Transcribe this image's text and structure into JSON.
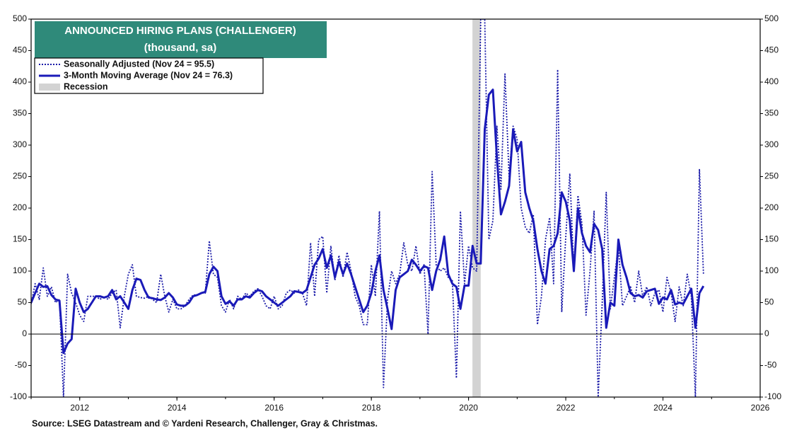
{
  "chart_data": {
    "type": "line",
    "title": "ANNOUNCED HIRING PLANS (CHALLENGER)",
    "subtitle": "(thousand, sa)",
    "source": "Source: LSEG Datastream and © Yardeni Research, Challenger, Gray & Christmas.",
    "xlim": [
      2011,
      2026
    ],
    "xticks": [
      2012,
      2014,
      2016,
      2018,
      2020,
      2022,
      2024,
      2026
    ],
    "ylim": [
      -100,
      500
    ],
    "yticks": [
      -100,
      -50,
      0,
      50,
      100,
      150,
      200,
      250,
      300,
      350,
      400,
      450,
      500
    ],
    "shaded": {
      "name": "Recession",
      "color": "#d3d3d3",
      "x": [
        2020.08,
        2020.25
      ]
    },
    "x": [
      2011,
      2011.083,
      2011.167,
      2011.25,
      2011.333,
      2011.417,
      2011.5,
      2011.583,
      2011.667,
      2011.75,
      2011.833,
      2011.917,
      2012,
      2012.083,
      2012.167,
      2012.25,
      2012.333,
      2012.417,
      2012.5,
      2012.583,
      2012.667,
      2012.75,
      2012.833,
      2012.917,
      2013,
      2013.083,
      2013.167,
      2013.25,
      2013.333,
      2013.417,
      2013.5,
      2013.583,
      2013.667,
      2013.75,
      2013.833,
      2013.917,
      2014,
      2014.083,
      2014.167,
      2014.25,
      2014.333,
      2014.417,
      2014.5,
      2014.583,
      2014.667,
      2014.75,
      2014.833,
      2014.917,
      2015,
      2015.083,
      2015.167,
      2015.25,
      2015.333,
      2015.417,
      2015.5,
      2015.583,
      2015.667,
      2015.75,
      2015.833,
      2015.917,
      2016,
      2016.083,
      2016.167,
      2016.25,
      2016.333,
      2016.417,
      2016.5,
      2016.583,
      2016.667,
      2016.75,
      2016.833,
      2016.917,
      2017,
      2017.083,
      2017.167,
      2017.25,
      2017.333,
      2017.417,
      2017.5,
      2017.583,
      2017.667,
      2017.75,
      2017.833,
      2017.917,
      2018,
      2018.083,
      2018.167,
      2018.25,
      2018.333,
      2018.417,
      2018.5,
      2018.583,
      2018.667,
      2018.75,
      2018.833,
      2018.917,
      2019,
      2019.083,
      2019.167,
      2019.25,
      2019.333,
      2019.417,
      2019.5,
      2019.583,
      2019.667,
      2019.75,
      2019.833,
      2019.917,
      2020,
      2020.083,
      2020.167,
      2020.25,
      2020.333,
      2020.417,
      2020.5,
      2020.583,
      2020.667,
      2020.75,
      2020.833,
      2020.917,
      2021,
      2021.083,
      2021.167,
      2021.25,
      2021.333,
      2021.417,
      2021.5,
      2021.583,
      2021.667,
      2021.75,
      2021.833,
      2021.917,
      2022,
      2022.083,
      2022.167,
      2022.25,
      2022.333,
      2022.417,
      2022.5,
      2022.583,
      2022.667,
      2022.75,
      2022.833,
      2022.917,
      2023,
      2023.083,
      2023.167,
      2023.25,
      2023.333,
      2023.417,
      2023.5,
      2023.583,
      2023.667,
      2023.75,
      2023.833,
      2023.917,
      2024,
      2024.083,
      2024.167,
      2024.25,
      2024.333,
      2024.417,
      2024.5,
      2024.583,
      2024.667,
      2024.75,
      2024.833
    ],
    "series": [
      {
        "name": "Seasonally Adjusted (Nov 24 = 95.5)",
        "color": "#1a1aa8",
        "style": "dotted",
        "values": [
          48,
          80,
          55,
          105,
          60,
          75,
          50,
          55,
          -100,
          95,
          65,
          50,
          30,
          20,
          60,
          60,
          60,
          55,
          60,
          55,
          65,
          70,
          10,
          60,
          95,
          110,
          60,
          58,
          57,
          60,
          55,
          50,
          95,
          60,
          35,
          55,
          40,
          40,
          45,
          55,
          62,
          62,
          65,
          65,
          148,
          95,
          90,
          45,
          35,
          55,
          40,
          60,
          55,
          65,
          60,
          68,
          72,
          60,
          45,
          40,
          60,
          40,
          45,
          65,
          70,
          65,
          70,
          65,
          45,
          145,
          60,
          150,
          155,
          65,
          140,
          85,
          125,
          90,
          130,
          100,
          60,
          45,
          15,
          15,
          110,
          60,
          195,
          -85,
          55,
          100,
          80,
          95,
          145,
          110,
          100,
          140,
          95,
          110,
          0,
          258,
          110,
          100,
          105,
          90,
          85,
          -70,
          195,
          80,
          140,
          105,
          100,
          500,
          500,
          150,
          180,
          330,
          230,
          413,
          250,
          330,
          310,
          200,
          170,
          160,
          190,
          15,
          60,
          150,
          185,
          80,
          420,
          35,
          155,
          255,
          100,
          220,
          175,
          30,
          100,
          195,
          -100,
          50,
          225,
          40,
          90,
          140,
          45,
          60,
          75,
          50,
          100,
          60,
          75,
          45,
          65,
          70,
          35,
          90,
          65,
          20,
          75,
          45,
          95,
          60,
          -100,
          262,
          95.5
        ]
      },
      {
        "name": "3-Month Moving Average (Nov 24 = 76.3)",
        "color": "#1a1ab8",
        "style": "solid",
        "values": [
          50,
          65,
          80,
          75,
          76,
          62,
          55,
          53,
          -30,
          -15,
          -8,
          72,
          50,
          35,
          40,
          50,
          60,
          60,
          58,
          60,
          70,
          55,
          60,
          50,
          40,
          70,
          88,
          86,
          70,
          58,
          57,
          55,
          54,
          58,
          65,
          58,
          47,
          45,
          45,
          50,
          60,
          62,
          65,
          67,
          95,
          107,
          100,
          60,
          48,
          52,
          45,
          55,
          55,
          60,
          58,
          65,
          70,
          68,
          60,
          55,
          50,
          45,
          50,
          55,
          60,
          68,
          67,
          65,
          70,
          90,
          110,
          120,
          135,
          105,
          125,
          90,
          115,
          95,
          112,
          95,
          75,
          55,
          35,
          45,
          65,
          100,
          125,
          70,
          40,
          8,
          70,
          90,
          95,
          100,
          118,
          110,
          100,
          108,
          105,
          70,
          100,
          118,
          155,
          95,
          80,
          75,
          40,
          77,
          77,
          140,
          112,
          112,
          325,
          380,
          388,
          280,
          190,
          210,
          235,
          325,
          290,
          305,
          225,
          200,
          180,
          135,
          100,
          80,
          135,
          140,
          160,
          225,
          210,
          180,
          100,
          200,
          160,
          140,
          130,
          175,
          165,
          135,
          10,
          50,
          45,
          150,
          110,
          90,
          65,
          60,
          62,
          58,
          68,
          70,
          72,
          48,
          58,
          55,
          70,
          47,
          50,
          48,
          60,
          72,
          10,
          65,
          76.3
        ]
      }
    ],
    "title_box_color": "#2f8a7a"
  }
}
